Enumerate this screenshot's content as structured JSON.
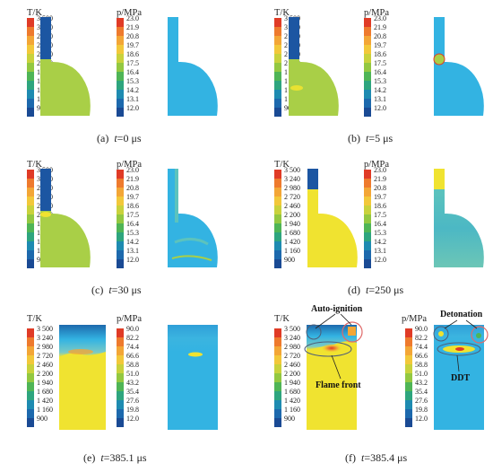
{
  "temp_ticks": [
    "3 500",
    "3 240",
    "2 980",
    "2 720",
    "2 460",
    "2 200",
    "1 940",
    "1 680",
    "1 420",
    "1 160",
    "900"
  ],
  "pressure_ticks_low": [
    "23.0",
    "21.9",
    "20.8",
    "19.7",
    "18.6",
    "17.5",
    "16.4",
    "15.3",
    "14.2",
    "13.1",
    "12.0"
  ],
  "pressure_ticks_high": [
    "90.0",
    "82.2",
    "74.4",
    "66.6",
    "58.8",
    "51.0",
    "43.2",
    "35.4",
    "27.6",
    "19.8",
    "12.0"
  ],
  "colorbar_colors": [
    "#e03b26",
    "#ee7a2d",
    "#f3a636",
    "#f2c83a",
    "#c9d23c",
    "#93c841",
    "#4fb556",
    "#2ea57e",
    "#1e8bb1",
    "#1d69ad",
    "#1a4a94"
  ],
  "colors": {
    "field_green": "#a9cf47",
    "field_cyan": "#33b3e2",
    "field_yellow": "#f0e330",
    "jet_blue": "#1c56a2",
    "annotation_circle": "#e06a6a",
    "annotation_oval": "#4e5e78"
  },
  "panels": [
    {
      "id": "a",
      "letter": "(a)",
      "time_prefix": "t",
      "time_eq": "=",
      "time_value": "0 μs",
      "temp_label": "T/K",
      "pressure_label": "p/MPa"
    },
    {
      "id": "b",
      "letter": "(b)",
      "time_prefix": "t",
      "time_eq": "=",
      "time_value": "5 μs",
      "temp_label": "T/K",
      "pressure_label": "p/MPa"
    },
    {
      "id": "c",
      "letter": "(c)",
      "time_prefix": "t",
      "time_eq": "=",
      "time_value": "30 μs",
      "temp_label": "T/K",
      "pressure_label": "p/MPa"
    },
    {
      "id": "d",
      "letter": "(d)",
      "time_prefix": "t",
      "time_eq": "=",
      "time_value": "250 μs",
      "temp_label": "T/K",
      "pressure_label": "p/MPa"
    },
    {
      "id": "e",
      "letter": "(e)",
      "time_prefix": "t",
      "time_eq": "=",
      "time_value": "385.1 μs",
      "temp_label": "T/K",
      "pressure_label": "p/MPa"
    },
    {
      "id": "f",
      "letter": "(f)",
      "time_prefix": "t",
      "time_eq": "=",
      "time_value": "385.4 μs",
      "temp_label": "T/K",
      "pressure_label": "p/MPa"
    }
  ],
  "annotations": {
    "auto_ignition": "Auto-ignition",
    "flame_front": "Flame front",
    "detonation": "Detonation",
    "ddt": "DDT"
  }
}
